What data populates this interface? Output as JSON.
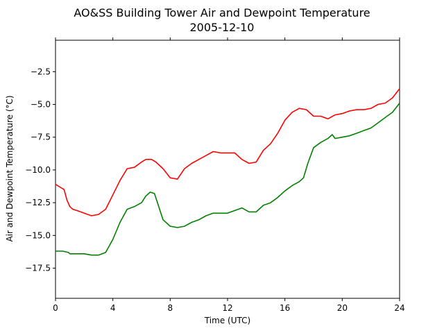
{
  "chart_data": {
    "type": "line",
    "title": "AO&SS Building Tower Air and Dewpoint Temperature",
    "subtitle": "2005-12-10",
    "xlabel": "Time (UTC)",
    "ylabel": "Air and Dewpoint Temperature (°C)",
    "xlim": [
      0,
      24
    ],
    "ylim": [
      -19.8,
      -0.1
    ],
    "xticks": [
      0,
      4,
      8,
      12,
      16,
      20,
      24
    ],
    "xtick_labels": [
      "0",
      "4",
      "8",
      "12",
      "16",
      "20",
      "24"
    ],
    "yticks": [
      -2.5,
      -5.0,
      -7.5,
      -10.0,
      -12.5,
      -15.0,
      -17.5
    ],
    "ytick_labels": [
      "−2.5",
      "−5.0",
      "−7.5",
      "−10.0",
      "−12.5",
      "−15.0",
      "−17.5"
    ],
    "grid": false,
    "legend": "none",
    "series": [
      {
        "color": "#ff0000",
        "x": [
          0,
          0.3,
          0.6,
          0.8,
          1.0,
          1.2,
          1.5,
          2.0,
          2.5,
          3.0,
          3.5,
          4.0,
          4.5,
          5.0,
          5.5,
          6.0,
          6.3,
          6.7,
          7.0,
          7.5,
          8.0,
          8.5,
          9.0,
          9.5,
          10.0,
          10.5,
          11.0,
          11.5,
          12.0,
          12.5,
          13.0,
          13.5,
          14.0,
          14.5,
          15.0,
          15.5,
          16.0,
          16.5,
          17.0,
          17.5,
          18.0,
          18.5,
          19.0,
          19.5,
          20.0,
          20.5,
          21.0,
          21.5,
          22.0,
          22.5,
          23.0,
          23.5,
          24.0
        ],
        "y": [
          -11.1,
          -11.3,
          -11.5,
          -12.3,
          -12.8,
          -13.0,
          -13.1,
          -13.3,
          -13.5,
          -13.4,
          -13.0,
          -11.9,
          -10.8,
          -9.9,
          -9.8,
          -9.4,
          -9.2,
          -9.2,
          -9.4,
          -9.9,
          -10.6,
          -10.7,
          -9.9,
          -9.5,
          -9.2,
          -8.9,
          -8.6,
          -8.7,
          -8.7,
          -8.7,
          -9.2,
          -9.5,
          -9.4,
          -8.5,
          -8.0,
          -7.2,
          -6.2,
          -5.6,
          -5.3,
          -5.4,
          -5.9,
          -5.9,
          -6.1,
          -5.8,
          -5.7,
          -5.5,
          -5.4,
          -5.4,
          -5.3,
          -5.0,
          -4.9,
          -4.5,
          -3.8
        ]
      },
      {
        "color": "#008000",
        "x": [
          0,
          0.5,
          0.9,
          1.0,
          1.5,
          2.0,
          2.5,
          3.0,
          3.5,
          4.0,
          4.5,
          5.0,
          5.5,
          6.0,
          6.3,
          6.6,
          6.9,
          7.2,
          7.5,
          8.0,
          8.5,
          9.0,
          9.5,
          10.0,
          10.5,
          11.0,
          11.5,
          12.0,
          12.5,
          13.0,
          13.5,
          14.0,
          14.5,
          15.0,
          15.5,
          16.0,
          16.5,
          17.0,
          17.3,
          17.6,
          18.0,
          18.5,
          19.0,
          19.3,
          19.5,
          20.0,
          20.5,
          21.0,
          21.5,
          22.0,
          22.5,
          23.0,
          23.5,
          24.0
        ],
        "y": [
          -16.2,
          -16.2,
          -16.3,
          -16.4,
          -16.4,
          -16.4,
          -16.5,
          -16.5,
          -16.3,
          -15.3,
          -14.0,
          -13.0,
          -12.8,
          -12.5,
          -12.0,
          -11.7,
          -11.8,
          -12.8,
          -13.8,
          -14.3,
          -14.4,
          -14.3,
          -14.0,
          -13.8,
          -13.5,
          -13.3,
          -13.3,
          -13.3,
          -13.1,
          -12.9,
          -13.2,
          -13.2,
          -12.7,
          -12.5,
          -12.1,
          -11.6,
          -11.2,
          -10.9,
          -10.6,
          -9.5,
          -8.3,
          -7.9,
          -7.6,
          -7.3,
          -7.6,
          -7.5,
          -7.4,
          -7.2,
          -7.0,
          -6.8,
          -6.4,
          -6.0,
          -5.6,
          -4.9
        ]
      }
    ]
  }
}
